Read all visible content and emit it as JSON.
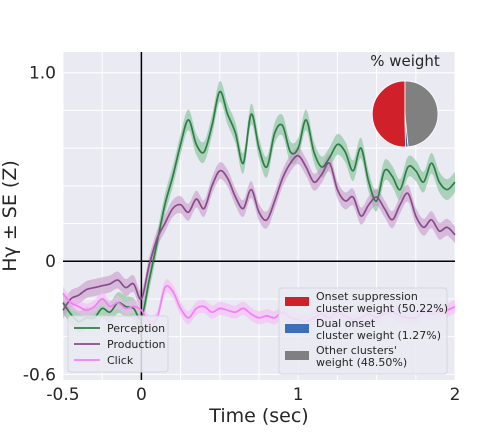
{
  "chart_data": {
    "type": "line",
    "xlabel": "Time (sec)",
    "ylabel": "Hγ ± SE (Z)",
    "xlim": [
      -0.5,
      2.0
    ],
    "ylim": [
      -0.63,
      1.11
    ],
    "xticks": [
      {
        "value": -0.5,
        "label": "-0.5"
      },
      {
        "value": 0,
        "label": "0"
      },
      {
        "value": 1,
        "label": "1"
      },
      {
        "value": 2,
        "label": "2"
      }
    ],
    "yticks": [
      {
        "value": -0.6,
        "label": "-0.6"
      },
      {
        "value": 0,
        "label": "0"
      },
      {
        "value": 1.0,
        "label": "1.0"
      }
    ],
    "grid": true,
    "reference_lines": {
      "x": 0,
      "y": 0
    },
    "legend": {
      "placement": "lower-left"
    },
    "series": [
      {
        "name": "Perception",
        "color": "#2e7d45",
        "band_color": "#7fbf94",
        "se": 0.055,
        "x": [
          -0.5,
          -0.45,
          -0.4,
          -0.35,
          -0.3,
          -0.25,
          -0.2,
          -0.15,
          -0.1,
          -0.05,
          0.0,
          0.05,
          0.1,
          0.15,
          0.2,
          0.25,
          0.3,
          0.35,
          0.4,
          0.45,
          0.5,
          0.55,
          0.6,
          0.65,
          0.7,
          0.75,
          0.8,
          0.85,
          0.9,
          0.95,
          1.0,
          1.05,
          1.1,
          1.15,
          1.2,
          1.25,
          1.3,
          1.35,
          1.4,
          1.45,
          1.5,
          1.55,
          1.6,
          1.65,
          1.7,
          1.75,
          1.8,
          1.85,
          1.9,
          1.95,
          2.0
        ],
        "values": [
          -0.22,
          -0.28,
          -0.32,
          -0.3,
          -0.3,
          -0.25,
          -0.27,
          -0.22,
          -0.24,
          -0.25,
          -0.3,
          -0.1,
          0.1,
          0.3,
          0.45,
          0.62,
          0.75,
          0.62,
          0.58,
          0.72,
          0.9,
          0.78,
          0.68,
          0.52,
          0.78,
          0.6,
          0.5,
          0.68,
          0.72,
          0.58,
          0.6,
          0.75,
          0.58,
          0.5,
          0.55,
          0.62,
          0.58,
          0.48,
          0.6,
          0.42,
          0.32,
          0.48,
          0.45,
          0.38,
          0.5,
          0.48,
          0.42,
          0.52,
          0.42,
          0.38,
          0.42
        ]
      },
      {
        "name": "Production",
        "color": "#8b4a8b",
        "band_color": "#c79ac9",
        "se": 0.045,
        "x": [
          -0.5,
          -0.45,
          -0.4,
          -0.35,
          -0.3,
          -0.25,
          -0.2,
          -0.15,
          -0.1,
          -0.05,
          0.0,
          0.05,
          0.1,
          0.15,
          0.2,
          0.25,
          0.3,
          0.35,
          0.4,
          0.45,
          0.5,
          0.55,
          0.6,
          0.65,
          0.7,
          0.75,
          0.8,
          0.85,
          0.9,
          0.95,
          1.0,
          1.05,
          1.1,
          1.15,
          1.2,
          1.25,
          1.3,
          1.35,
          1.4,
          1.45,
          1.5,
          1.55,
          1.6,
          1.65,
          1.7,
          1.75,
          1.8,
          1.85,
          1.9,
          1.95,
          2.0
        ],
        "values": [
          -0.26,
          -0.2,
          -0.18,
          -0.15,
          -0.14,
          -0.13,
          -0.12,
          -0.1,
          -0.14,
          -0.12,
          -0.2,
          -0.02,
          0.12,
          0.2,
          0.28,
          0.3,
          0.26,
          0.33,
          0.28,
          0.4,
          0.48,
          0.44,
          0.34,
          0.28,
          0.38,
          0.26,
          0.22,
          0.32,
          0.44,
          0.52,
          0.56,
          0.5,
          0.42,
          0.46,
          0.52,
          0.38,
          0.32,
          0.34,
          0.24,
          0.3,
          0.34,
          0.28,
          0.22,
          0.3,
          0.36,
          0.24,
          0.18,
          0.22,
          0.16,
          0.18,
          0.14
        ]
      },
      {
        "name": "Click",
        "color": "#f47ef4",
        "band_color": "#f5b8f5",
        "se": 0.035,
        "x": [
          -0.5,
          -0.45,
          -0.4,
          -0.35,
          -0.3,
          -0.25,
          -0.2,
          -0.15,
          -0.1,
          -0.05,
          0.0,
          0.05,
          0.1,
          0.15,
          0.2,
          0.25,
          0.3,
          0.35,
          0.4,
          0.45,
          0.5,
          0.55,
          0.6,
          0.65,
          0.7,
          0.75,
          0.8,
          0.85,
          0.9,
          0.95,
          1.0,
          1.05,
          1.1,
          1.15,
          1.2,
          1.25,
          1.3,
          1.35,
          1.4,
          1.45,
          1.5,
          1.55,
          1.6,
          1.65,
          1.7,
          1.75,
          1.8,
          1.85,
          1.9,
          1.95,
          2.0
        ],
        "values": [
          -0.17,
          -0.22,
          -0.24,
          -0.26,
          -0.24,
          -0.2,
          -0.24,
          -0.22,
          -0.25,
          -0.24,
          -0.26,
          -0.32,
          -0.3,
          -0.14,
          -0.16,
          -0.25,
          -0.3,
          -0.25,
          -0.24,
          -0.27,
          -0.25,
          -0.26,
          -0.27,
          -0.25,
          -0.28,
          -0.3,
          -0.29,
          -0.3,
          -0.27,
          -0.3,
          -0.31,
          -0.32,
          -0.3,
          -0.28,
          -0.3,
          -0.27,
          -0.29,
          -0.31,
          -0.3,
          -0.28,
          -0.3,
          -0.28,
          -0.27,
          -0.29,
          -0.3,
          -0.3,
          -0.27,
          -0.28,
          -0.27,
          -0.26,
          -0.24
        ]
      }
    ],
    "pie": {
      "title": "% weight",
      "type": "pie",
      "slices": [
        {
          "label": "Onset suppression\ncluster weight (50.22%)",
          "value": 50.22,
          "color": "#d0202a"
        },
        {
          "label": "Dual onset\ncluster weight (1.27%)",
          "value": 1.27,
          "color": "#3d6fb8"
        },
        {
          "label": "Other clusters'\nweight (48.50%)",
          "value": 48.5,
          "color": "#808080"
        }
      ]
    }
  }
}
